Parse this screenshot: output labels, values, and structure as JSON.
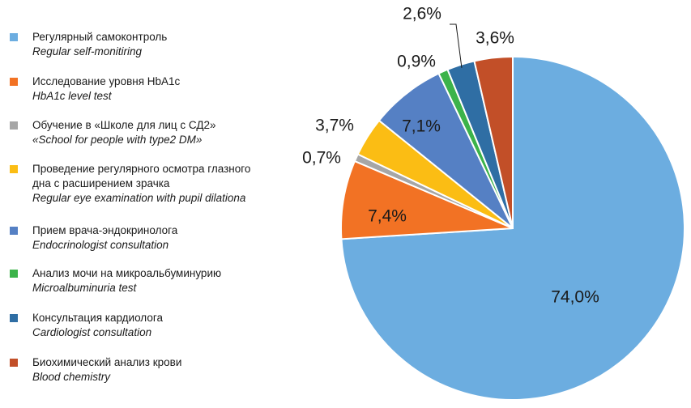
{
  "chart_data": {
    "type": "pie",
    "categories": [
      "Регулярный самоконтроль",
      "Исследование уровня HbA1c",
      "Обучение в «Школе для лиц с СД2»",
      "Проведение регулярного осмотра глазного дна с расширением зрачка",
      "Прием врача-эндокринолога",
      "Анализ мочи на микроальбуминурию",
      "Консультация кардиолога",
      "Биохимический анализ крови"
    ],
    "values": [
      74.0,
      7.4,
      0.7,
      3.7,
      7.1,
      0.9,
      2.6,
      3.6
    ],
    "data_labels": [
      "74,0%",
      "7,4%",
      "0,7%",
      "3,7%",
      "7,1%",
      "0,9%",
      "2,6%",
      "3,6%"
    ],
    "legend_placement": "left"
  },
  "legend": [
    {
      "ru": "Регулярный самоконтроль",
      "en": "Regular self-monitiring",
      "color": "#6cade0"
    },
    {
      "ru": "Исследование уровня HbA1c",
      "en": "HbA1c level test",
      "color": "#f27224"
    },
    {
      "ru": "Обучение в «Школе для лиц с СД2»",
      "en": "«School for people with type2 DM»",
      "color": "#a6a6a6"
    },
    {
      "ru": "Проведение регулярного осмотра глазного\nдна с расширением зрачка",
      "en": "Regular eye examination with pupil dilationa",
      "color": "#fbbd14"
    },
    {
      "ru": "Прием врача-эндокринолога",
      "en": "Endocrinologist consultation",
      "color": "#5580c4"
    },
    {
      "ru": "Анализ мочи на микроальбуминурию",
      "en": "Microalbuminuria test",
      "color": "#3cb34a"
    },
    {
      "ru": "Консультация кардиолога",
      "en": "Cardiologist consultation",
      "color": "#2f6ea4"
    },
    {
      "ru": "Биохимический анализ крови",
      "en": "Blood chemistry",
      "color": "#c24f28"
    }
  ]
}
